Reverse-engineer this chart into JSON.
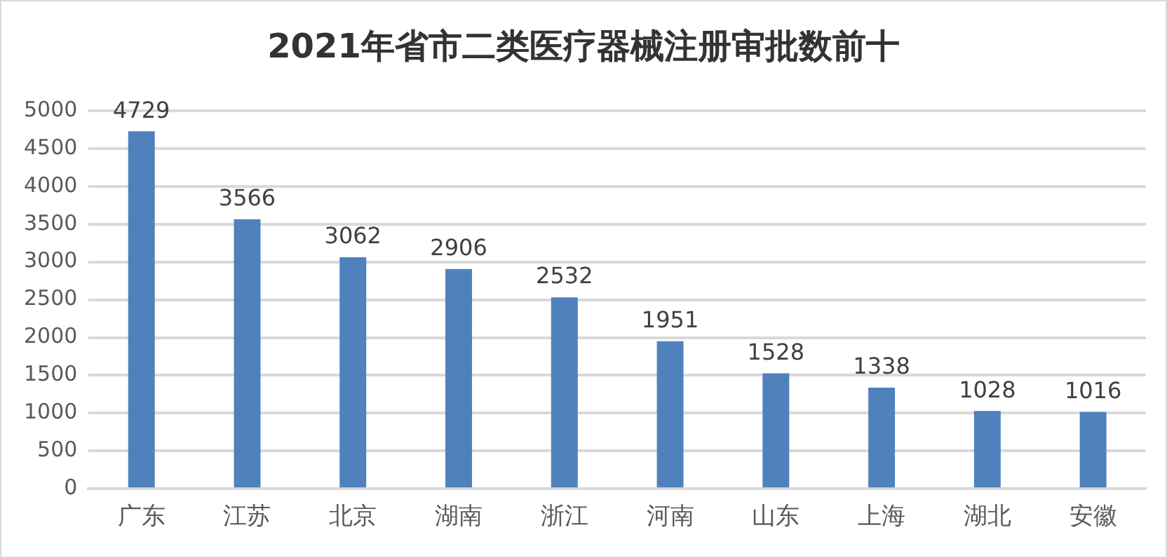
{
  "chart_data": {
    "type": "bar",
    "title": "2021年省市二类医疗器械注册审批数前十",
    "categories": [
      "广东",
      "江苏",
      "北京",
      "湖南",
      "浙江",
      "河南",
      "山东",
      "上海",
      "湖北",
      "安徽"
    ],
    "values": [
      4729,
      3566,
      3062,
      2906,
      2532,
      1951,
      1528,
      1338,
      1028,
      1016
    ],
    "color": "#4f81bd",
    "ylim": [
      0,
      5000
    ],
    "yticks": [
      0,
      500,
      1000,
      1500,
      2000,
      2500,
      3000,
      3500,
      4000,
      4500,
      5000
    ],
    "grid": "y",
    "data_labels": true,
    "legend": false
  }
}
